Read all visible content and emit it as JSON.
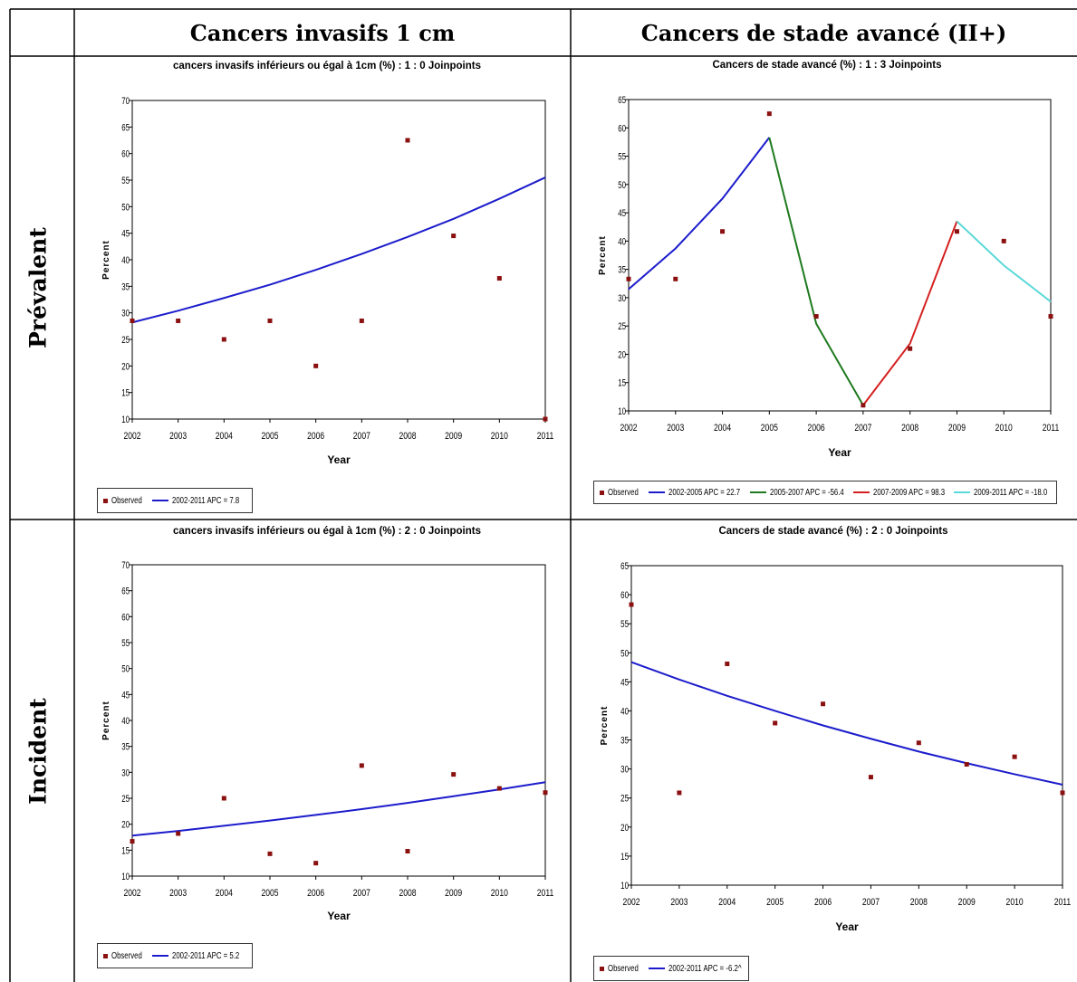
{
  "table": {
    "columns": [
      "Cancers invasifs 1 cm",
      "Cancers de stade avancé (II+)"
    ],
    "rows": [
      "Prévalent",
      "Incident"
    ]
  },
  "colors": {
    "observed": "#8b1010",
    "blue": "#1c1ccc",
    "green": "#1e7a1e",
    "red": "#d42020",
    "cyan": "#5bd8d8"
  },
  "chart_data": [
    {
      "type": "scatter",
      "title": "cancers invasifs inférieurs ou égal à 1cm (%) : 1 : 0 Joinpoints",
      "xlabel": "Year",
      "ylabel": "Percent",
      "ylim": [
        10,
        70
      ],
      "yticks": [
        10,
        15,
        20,
        25,
        30,
        35,
        40,
        45,
        50,
        55,
        60,
        65,
        70
      ],
      "x": [
        2002,
        2003,
        2004,
        2005,
        2006,
        2007,
        2008,
        2009,
        2010,
        2011
      ],
      "observed": [
        28.5,
        28.5,
        25,
        28.5,
        20,
        28.5,
        62.5,
        44.5,
        36.5,
        10
      ],
      "fits": [
        {
          "name": "2002-2011 APC = 7.8",
          "color": "blue",
          "x": [
            2002,
            2003,
            2004,
            2005,
            2006,
            2007,
            2008,
            2009,
            2010,
            2011
          ],
          "y": [
            28.2,
            30.4,
            32.8,
            35.3,
            38.1,
            41.1,
            44.3,
            47.7,
            51.5,
            55.5
          ]
        }
      ],
      "legend": [
        "Observed",
        "2002-2011 APC = 7.8"
      ]
    },
    {
      "type": "scatter",
      "title": "Cancers de stade avancé (%) : 1 : 3 Joinpoints",
      "xlabel": "Year",
      "ylabel": "Percent",
      "ylim": [
        10,
        65
      ],
      "yticks": [
        10,
        15,
        20,
        25,
        30,
        35,
        40,
        45,
        50,
        55,
        60,
        65
      ],
      "x": [
        2002,
        2003,
        2004,
        2005,
        2006,
        2007,
        2008,
        2009,
        2010,
        2011
      ],
      "observed": [
        33.3,
        33.3,
        41.7,
        62.5,
        26.7,
        11,
        21,
        41.7,
        40,
        26.7
      ],
      "fits": [
        {
          "name": "2002-2005 APC = 22.7",
          "color": "blue",
          "x": [
            2002,
            2003,
            2004,
            2005
          ],
          "y": [
            31.5,
            38.7,
            47.5,
            58.3
          ]
        },
        {
          "name": "2005-2007 APC = -56.4",
          "color": "green",
          "x": [
            2005,
            2006,
            2007
          ],
          "y": [
            58.3,
            25.4,
            11
          ]
        },
        {
          "name": "2007-2009 APC = 98.3",
          "color": "red",
          "x": [
            2007,
            2008,
            2009
          ],
          "y": [
            11,
            21.9,
            43.5
          ]
        },
        {
          "name": "2009-2011 APC = -18.0",
          "color": "cyan",
          "x": [
            2009,
            2010,
            2011
          ],
          "y": [
            43.5,
            35.7,
            29.3
          ]
        }
      ],
      "legend": [
        "Observed",
        "2002-2005 APC = 22.7",
        "2005-2007 APC = -56.4",
        "2007-2009 APC = 98.3",
        "2009-2011 APC = -18.0"
      ]
    },
    {
      "type": "scatter",
      "title": "cancers invasifs inférieurs ou égal à 1cm (%) : 2 : 0 Joinpoints",
      "xlabel": "Year",
      "ylabel": "Percent",
      "ylim": [
        10,
        70
      ],
      "yticks": [
        10,
        15,
        20,
        25,
        30,
        35,
        40,
        45,
        50,
        55,
        60,
        65,
        70
      ],
      "x": [
        2002,
        2003,
        2004,
        2005,
        2006,
        2007,
        2008,
        2009,
        2010,
        2011
      ],
      "observed": [
        16.7,
        18.2,
        25,
        14.3,
        12.5,
        31.3,
        14.8,
        29.6,
        26.9,
        26.1
      ],
      "fits": [
        {
          "name": "2002-2011 APC = 5.2",
          "color": "blue",
          "x": [
            2002,
            2003,
            2004,
            2005,
            2006,
            2007,
            2008,
            2009,
            2010,
            2011
          ],
          "y": [
            17.8,
            18.7,
            19.7,
            20.7,
            21.8,
            22.9,
            24.1,
            25.4,
            26.7,
            28.1
          ]
        }
      ],
      "legend": [
        "Observed",
        "2002-2011 APC = 5.2"
      ]
    },
    {
      "type": "scatter",
      "title": "Cancers de stade avancé (%) : 2 : 0 Joinpoints",
      "xlabel": "Year",
      "ylabel": "Percent",
      "ylim": [
        10,
        65
      ],
      "yticks": [
        10,
        15,
        20,
        25,
        30,
        35,
        40,
        45,
        50,
        55,
        60,
        65
      ],
      "x": [
        2002,
        2003,
        2004,
        2005,
        2006,
        2007,
        2008,
        2009,
        2010,
        2011
      ],
      "observed": [
        58.3,
        25.9,
        48.1,
        37.9,
        41.2,
        28.6,
        34.5,
        30.8,
        32.1,
        25.9
      ],
      "fits": [
        {
          "name": "2002-2011 APC = -6.2^",
          "color": "blue",
          "x": [
            2002,
            2003,
            2004,
            2005,
            2006,
            2007,
            2008,
            2009,
            2010,
            2011
          ],
          "y": [
            48.4,
            45.4,
            42.6,
            40.0,
            37.5,
            35.2,
            33.0,
            31.0,
            29.1,
            27.3
          ]
        }
      ],
      "legend": [
        "Observed",
        "2002-2011 APC = -6.2^"
      ]
    }
  ]
}
